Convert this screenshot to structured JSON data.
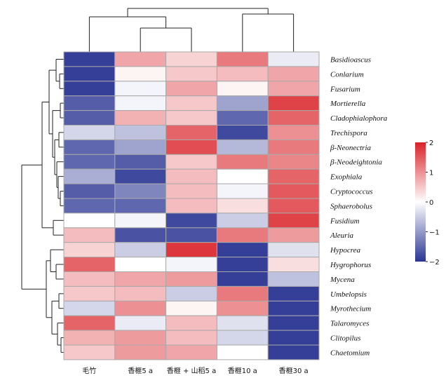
{
  "chart_data": {
    "type": "heatmap",
    "columns": [
      "毛竹",
      "香榧5 a",
      "香榧 + 山稻5 a",
      "香榧10 a",
      "香榧30 a"
    ],
    "rows": [
      "Basidioascus",
      "Conlarium",
      "Fusarium",
      "Mortierella",
      "Cladophialophora",
      "Trechispora",
      "β-Neonectria",
      "β-Neodeightonia",
      "Exophiala",
      "Cryptococcus",
      "Sphaerobolus",
      "Fusidium",
      "Aleuria",
      "Hypocrea",
      "Hygrophorus",
      "Mycena",
      "Umbelopsis",
      "Myrothecium",
      "Talaromyces",
      "Clitopilus",
      "Chaetomium"
    ],
    "values": [
      [
        -1.9,
        0.8,
        0.4,
        1.2,
        -0.2
      ],
      [
        -1.9,
        0.1,
        0.5,
        0.6,
        0.8
      ],
      [
        -1.9,
        -0.1,
        0.8,
        0.1,
        0.8
      ],
      [
        -1.6,
        -0.1,
        0.5,
        -0.9,
        1.7
      ],
      [
        -1.6,
        0.7,
        0.5,
        -1.5,
        1.4
      ],
      [
        -0.4,
        -0.6,
        1.4,
        -1.8,
        1.0
      ],
      [
        -1.5,
        -0.9,
        1.6,
        -0.7,
        1.2
      ],
      [
        -1.5,
        -1.6,
        0.5,
        1.2,
        1.1
      ],
      [
        -0.8,
        -1.8,
        0.6,
        0.0,
        1.4
      ],
      [
        -1.6,
        -1.2,
        0.6,
        -0.1,
        1.5
      ],
      [
        -1.5,
        -1.5,
        0.6,
        0.3,
        1.5
      ],
      [
        0.0,
        -0.1,
        -1.8,
        -0.5,
        1.7
      ],
      [
        0.6,
        -1.7,
        -1.7,
        1.2,
        0.9
      ],
      [
        0.4,
        -0.5,
        1.8,
        -1.9,
        -0.3
      ],
      [
        1.4,
        0.0,
        -0.1,
        -1.9,
        0.3
      ],
      [
        0.6,
        0.8,
        0.9,
        -1.9,
        -0.6
      ],
      [
        0.5,
        0.6,
        -0.5,
        1.2,
        -1.9
      ],
      [
        -0.4,
        1.0,
        0.1,
        1.0,
        -1.9
      ],
      [
        1.4,
        -0.2,
        0.6,
        -0.3,
        -1.9
      ],
      [
        0.7,
        0.9,
        0.6,
        -0.4,
        -1.9
      ],
      [
        0.5,
        0.9,
        0.8,
        0.0,
        -1.9
      ]
    ],
    "color_scale": {
      "min": -2,
      "max": 2,
      "ticks": [
        2,
        1,
        0,
        -1,
        -2
      ],
      "low_color": "#2a3593",
      "mid_color": "#ffffff",
      "high_color": "#d92127"
    },
    "column_dendrogram": true,
    "row_dendrogram": true,
    "legend_position": "right"
  }
}
